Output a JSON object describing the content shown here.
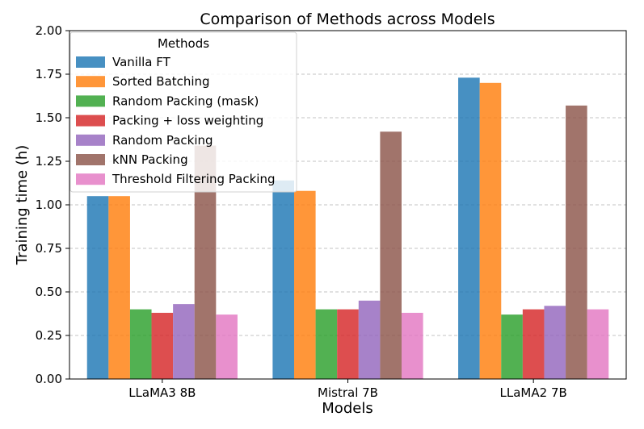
{
  "chart_data": {
    "type": "bar",
    "title": "Comparison of Methods across Models",
    "xlabel": "Models",
    "ylabel": "Training time (h)",
    "ylim": [
      0,
      2.0
    ],
    "yticks": [
      "0.00",
      "0.25",
      "0.50",
      "0.75",
      "1.00",
      "1.25",
      "1.50",
      "1.75",
      "2.00"
    ],
    "grid": "horizontal dashed",
    "legend_title": "Methods",
    "legend_position": "top-left",
    "categories": [
      "LLaMA3 8B",
      "Mistral 7B",
      "LLaMA2 7B"
    ],
    "series": [
      {
        "name": "Vanilla FT",
        "color": "#1f77b4",
        "values": [
          1.05,
          1.14,
          1.73
        ]
      },
      {
        "name": "Sorted Batching",
        "color": "#ff7f0e",
        "values": [
          1.05,
          1.08,
          1.7
        ]
      },
      {
        "name": "Random Packing (mask)",
        "color": "#2ca02c",
        "values": [
          0.4,
          0.4,
          0.37
        ]
      },
      {
        "name": "Packing + loss weighting",
        "color": "#d62728",
        "values": [
          0.38,
          0.4,
          0.4
        ]
      },
      {
        "name": "Random Packing",
        "color": "#9467bd",
        "values": [
          0.43,
          0.45,
          0.42
        ]
      },
      {
        "name": "kNN Packing",
        "color": "#8c564b",
        "values": [
          1.34,
          1.42,
          1.57
        ]
      },
      {
        "name": "Threshold Filtering Packing",
        "color": "#e377c2",
        "values": [
          0.37,
          0.38,
          0.4
        ]
      }
    ]
  }
}
